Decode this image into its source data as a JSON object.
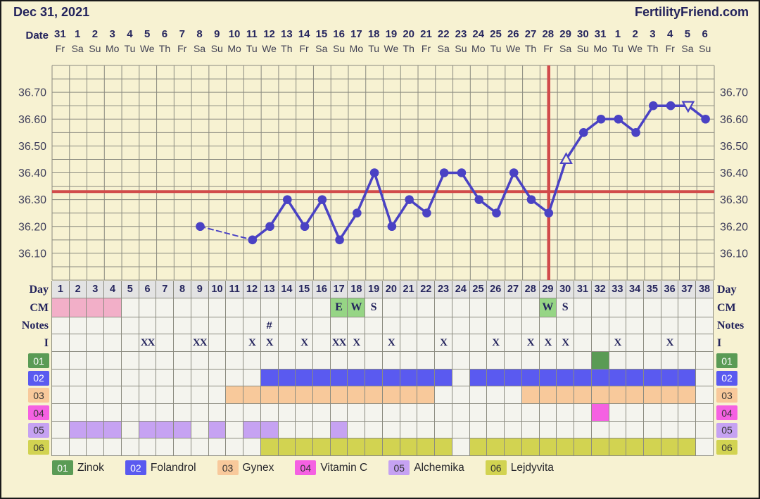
{
  "header": {
    "title": "Dec 31, 2021",
    "brand": "FertilityFriend.com"
  },
  "date_row": {
    "label": "Date",
    "dates": [
      "31",
      "1",
      "2",
      "3",
      "4",
      "5",
      "6",
      "7",
      "8",
      "9",
      "10",
      "11",
      "12",
      "13",
      "14",
      "15",
      "16",
      "17",
      "18",
      "19",
      "20",
      "21",
      "22",
      "23",
      "24",
      "25",
      "26",
      "27",
      "28",
      "29",
      "30",
      "31",
      "1",
      "2",
      "3",
      "4",
      "5",
      "6"
    ],
    "weekdays": [
      "Fr",
      "Sa",
      "Su",
      "Mo",
      "Tu",
      "We",
      "Th",
      "Fr",
      "Sa",
      "Su",
      "Mo",
      "Tu",
      "We",
      "Th",
      "Fr",
      "Sa",
      "Su",
      "Mo",
      "Tu",
      "We",
      "Th",
      "Fr",
      "Sa",
      "Su",
      "Mo",
      "Tu",
      "We",
      "Th",
      "Fr",
      "Sa",
      "Su",
      "Mo",
      "Tu",
      "We",
      "Th",
      "Fr",
      "Sa",
      "Su"
    ]
  },
  "chart_data": {
    "type": "line",
    "title": "",
    "xlabel": "Day",
    "ylabel": "",
    "ylim": [
      36.0,
      36.8
    ],
    "yticks": [
      "36.10",
      "36.20",
      "36.30",
      "36.40",
      "36.50",
      "36.60",
      "36.70"
    ],
    "grid": "on",
    "x_days": 38,
    "points": [
      {
        "day": 9,
        "temp": 36.2
      },
      {
        "day": 12,
        "temp": 36.15,
        "gap_before": true
      },
      {
        "day": 13,
        "temp": 36.2
      },
      {
        "day": 14,
        "temp": 36.3
      },
      {
        "day": 15,
        "temp": 36.2
      },
      {
        "day": 16,
        "temp": 36.3
      },
      {
        "day": 17,
        "temp": 36.15
      },
      {
        "day": 18,
        "temp": 36.25
      },
      {
        "day": 19,
        "temp": 36.4
      },
      {
        "day": 20,
        "temp": 36.2
      },
      {
        "day": 21,
        "temp": 36.3
      },
      {
        "day": 22,
        "temp": 36.25
      },
      {
        "day": 23,
        "temp": 36.4
      },
      {
        "day": 24,
        "temp": 36.4
      },
      {
        "day": 25,
        "temp": 36.3
      },
      {
        "day": 26,
        "temp": 36.25
      },
      {
        "day": 27,
        "temp": 36.4
      },
      {
        "day": 28,
        "temp": 36.3
      },
      {
        "day": 29,
        "temp": 36.25
      },
      {
        "day": 30,
        "temp": 36.45,
        "marker": "triangle-up"
      },
      {
        "day": 31,
        "temp": 36.55
      },
      {
        "day": 32,
        "temp": 36.6
      },
      {
        "day": 33,
        "temp": 36.6
      },
      {
        "day": 34,
        "temp": 36.55
      },
      {
        "day": 35,
        "temp": 36.65
      },
      {
        "day": 36,
        "temp": 36.65
      },
      {
        "day": 37,
        "temp": 36.65,
        "marker": "triangle-down"
      },
      {
        "day": 38,
        "temp": 36.6
      }
    ],
    "coverline_temp": 36.33,
    "ovulation_line_day": 29
  },
  "rows": {
    "day": {
      "label": "Day",
      "values": [
        "1",
        "2",
        "3",
        "4",
        "5",
        "6",
        "7",
        "8",
        "9",
        "10",
        "11",
        "12",
        "13",
        "14",
        "15",
        "16",
        "17",
        "18",
        "19",
        "20",
        "21",
        "22",
        "23",
        "24",
        "25",
        "26",
        "27",
        "28",
        "29",
        "30",
        "31",
        "32",
        "33",
        "34",
        "35",
        "36",
        "37",
        "38"
      ]
    },
    "cm": {
      "label": "CM",
      "menses_days": [
        1,
        2,
        3,
        4
      ],
      "entries": [
        {
          "day": 17,
          "text": "E",
          "highlight": true
        },
        {
          "day": 18,
          "text": "W",
          "highlight": true
        },
        {
          "day": 19,
          "text": "S",
          "highlight": false
        },
        {
          "day": 29,
          "text": "W",
          "highlight": true
        },
        {
          "day": 30,
          "text": "S",
          "highlight": false
        }
      ]
    },
    "notes": {
      "label": "Notes",
      "entries": [
        {
          "day": 13,
          "text": "#"
        }
      ]
    },
    "intercourse": {
      "label": "I",
      "entries": [
        {
          "day": 6,
          "text": "XX"
        },
        {
          "day": 9,
          "text": "XX"
        },
        {
          "day": 12,
          "text": "X"
        },
        {
          "day": 13,
          "text": "X"
        },
        {
          "day": 15,
          "text": "X"
        },
        {
          "day": 17,
          "text": "XX"
        },
        {
          "day": 18,
          "text": "X"
        },
        {
          "day": 20,
          "text": "X"
        },
        {
          "day": 23,
          "text": "X"
        },
        {
          "day": 26,
          "text": "X"
        },
        {
          "day": 28,
          "text": "X"
        },
        {
          "day": 29,
          "text": "X"
        },
        {
          "day": 30,
          "text": "X"
        },
        {
          "day": 33,
          "text": "X"
        },
        {
          "day": 36,
          "text": "X"
        }
      ]
    },
    "medications": [
      {
        "id": "01",
        "name": "Zinok",
        "color": "#5a9b55",
        "text_color": "#ffffff",
        "days": [
          32
        ]
      },
      {
        "id": "02",
        "name": "Folandrol",
        "color": "#5a5af0",
        "text_color": "#ffffff",
        "days": [
          13,
          14,
          15,
          16,
          17,
          18,
          19,
          20,
          21,
          22,
          23,
          25,
          26,
          27,
          28,
          29,
          30,
          31,
          32,
          33,
          34,
          35,
          36,
          37
        ]
      },
      {
        "id": "03",
        "name": "Gynex",
        "color": "#f8c99b",
        "text_color": "#333333",
        "days": [
          11,
          12,
          13,
          14,
          15,
          16,
          17,
          18,
          19,
          20,
          21,
          22,
          28,
          29,
          30,
          31,
          32,
          33,
          34,
          35,
          36,
          37
        ]
      },
      {
        "id": "04",
        "name": "Vitamin C",
        "color": "#f561e2",
        "text_color": "#333333",
        "days": [
          32
        ]
      },
      {
        "id": "05",
        "name": "Alchemika",
        "color": "#c6a2f2",
        "text_color": "#333333",
        "days": [
          2,
          3,
          4,
          6,
          7,
          8,
          10,
          12,
          13,
          17
        ]
      },
      {
        "id": "06",
        "name": "Lejdyvita",
        "color": "#d2d351",
        "text_color": "#333333",
        "days": [
          13,
          14,
          15,
          16,
          17,
          18,
          19,
          20,
          21,
          22,
          23,
          25,
          26,
          27,
          28,
          29,
          30,
          31,
          32,
          33,
          34,
          35,
          36,
          37
        ]
      }
    ]
  },
  "colors": {
    "background": "#f7f2d2",
    "grid_line": "#8b8b80",
    "temp_line": "#4a42c4",
    "signal_red": "#d14b4b",
    "menses_pink": "#f2afc8",
    "cm_green": "#96d585",
    "cell_bg": "#f4f4ee",
    "day_row_bg": "#e3e3e3",
    "navy_text": "#23235c"
  }
}
